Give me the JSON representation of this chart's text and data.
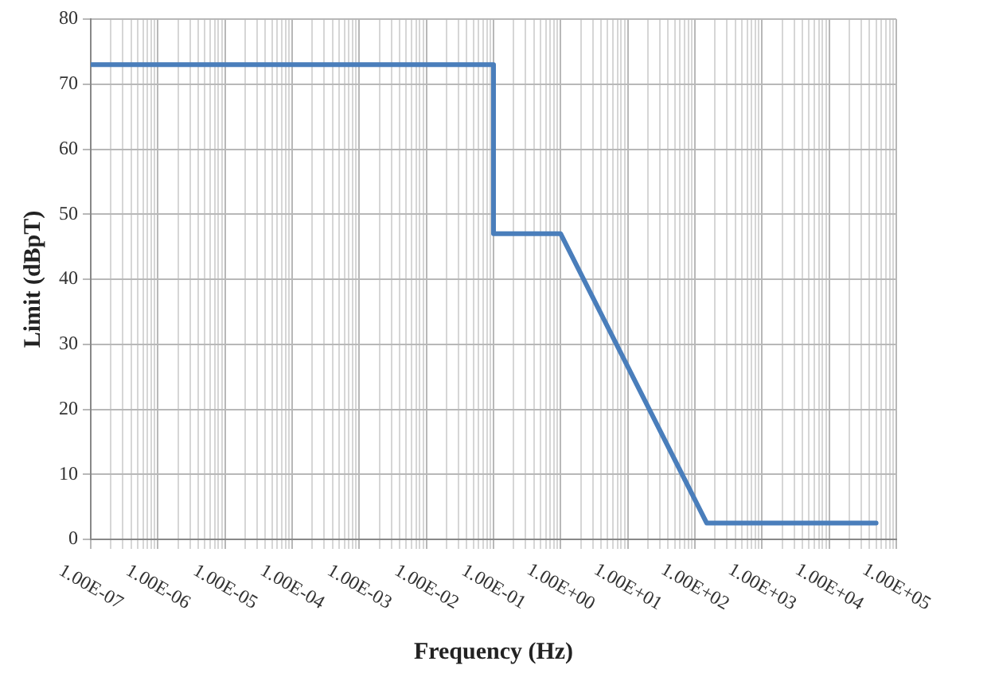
{
  "chart_data": {
    "type": "line",
    "xlabel": "Frequency (Hz)",
    "ylabel": "Limit (dBpT)",
    "log": "x",
    "x": [
      1e-07,
      0.1,
      0.1,
      1,
      150,
      50000
    ],
    "series": [
      {
        "color": "#4a7ebb",
        "values": [
          73,
          73,
          47,
          47,
          2.5,
          2.5
        ]
      }
    ],
    "xlim": [
      1e-07,
      100000.0
    ],
    "xticks": [
      {
        "value": 1e-07,
        "label": "1.00E-07"
      },
      {
        "value": 1e-06,
        "label": "1.00E-06"
      },
      {
        "value": 1e-05,
        "label": "1.00E-05"
      },
      {
        "value": 0.0001,
        "label": "1.00E-04"
      },
      {
        "value": 0.001,
        "label": "1.00E-03"
      },
      {
        "value": 0.01,
        "label": "1.00E-02"
      },
      {
        "value": 0.1,
        "label": "1.00E-01"
      },
      {
        "value": 1,
        "label": "1.00E+00"
      },
      {
        "value": 10,
        "label": "1.00E+01"
      },
      {
        "value": 100,
        "label": "1.00E+02"
      },
      {
        "value": 1000,
        "label": "1.00E+03"
      },
      {
        "value": 10000,
        "label": "1.00E+04"
      },
      {
        "value": 100000,
        "label": "1.00E+05"
      }
    ],
    "ylim": [
      0,
      80
    ],
    "yticks": [
      0,
      10,
      20,
      30,
      40,
      50,
      60,
      70,
      80
    ],
    "grid": true,
    "legend": false,
    "marker": "none",
    "line_style": "solid"
  }
}
